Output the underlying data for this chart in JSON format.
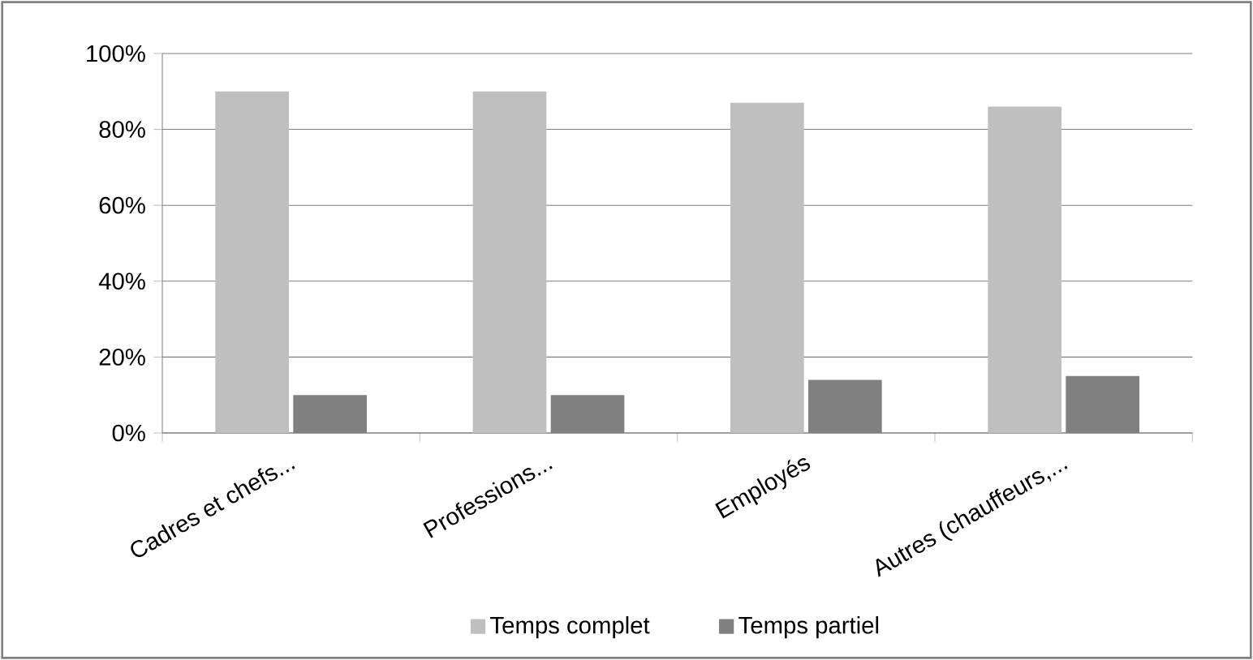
{
  "chart_data": {
    "type": "bar",
    "categories": [
      "Cadres et chefs...",
      "Professions...",
      "Employés",
      "Autres (chauffeurs,..."
    ],
    "series": [
      {
        "name": "Temps complet",
        "color": "#bfbfbf",
        "values": [
          90,
          90,
          87,
          86
        ]
      },
      {
        "name": "Temps partiel",
        "color": "#808080",
        "values": [
          10,
          10,
          14,
          15
        ]
      }
    ],
    "ylim": [
      0,
      100
    ],
    "yticks": [
      {
        "value": 0,
        "label": "0%"
      },
      {
        "value": 20,
        "label": "20%"
      },
      {
        "value": 40,
        "label": "40%"
      },
      {
        "value": 60,
        "label": "60%"
      },
      {
        "value": 80,
        "label": "80%"
      },
      {
        "value": 100,
        "label": "100%"
      }
    ],
    "grid": "y",
    "legend": "bottom"
  }
}
